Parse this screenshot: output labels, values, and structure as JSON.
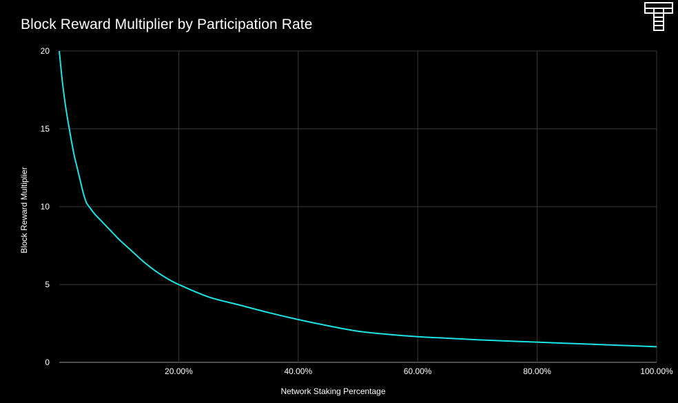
{
  "header": {
    "title": "Block Reward Multiplier by Participation Rate",
    "logo_icon": "t-logo-icon"
  },
  "colors": {
    "background": "#000000",
    "line": "#19e6e6",
    "grid": "#3a3a3a",
    "text": "#ffffff"
  },
  "chart_data": {
    "type": "line",
    "title": "Block Reward Multiplier by Participation Rate",
    "xlabel": "Network Staking Percentage",
    "ylabel": "Block Reward Multiplier",
    "xlim": [
      0,
      100
    ],
    "ylim": [
      0,
      20
    ],
    "x_ticks": [
      20,
      40,
      60,
      80,
      100
    ],
    "x_tick_labels": [
      "20.00%",
      "40.00%",
      "60.00%",
      "80.00%",
      "100.00%"
    ],
    "y_ticks": [
      0,
      5,
      10,
      15,
      20
    ],
    "y_tick_labels": [
      "0",
      "5",
      "10",
      "15",
      "20"
    ],
    "grid": true,
    "legend": "none",
    "series": [
      {
        "x": [
          0,
          0.5,
          1,
          1.5,
          2,
          2.5,
          3,
          3.5,
          4,
          4.5,
          5,
          6,
          7,
          8,
          10,
          12,
          14,
          16,
          18,
          20,
          25,
          30,
          35,
          40,
          45,
          50,
          55,
          60,
          65,
          70,
          75,
          80,
          85,
          90,
          95,
          100
        ],
        "values": [
          20,
          18.1,
          16.6,
          15.4,
          14.3,
          13.3,
          12.5,
          11.7,
          10.9,
          10.3,
          10,
          9.5,
          9.1,
          8.7,
          7.9,
          7.2,
          6.5,
          5.9,
          5.4,
          5,
          4.2,
          3.7,
          3.2,
          2.75,
          2.35,
          2.0,
          1.8,
          1.65,
          1.55,
          1.45,
          1.37,
          1.3,
          1.22,
          1.15,
          1.08,
          1.0
        ]
      }
    ]
  }
}
